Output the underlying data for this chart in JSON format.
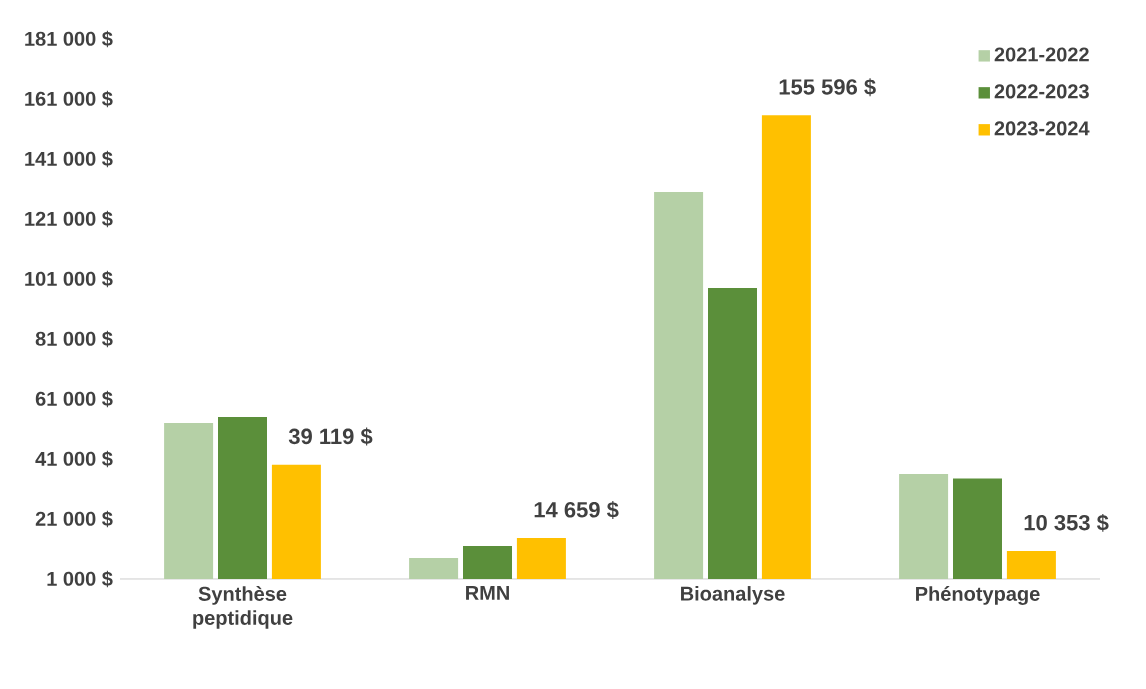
{
  "chart_data": {
    "type": "bar",
    "categories": [
      "Synthèse peptidique",
      "RMN",
      "Bioanalyse",
      "Phénotypage"
    ],
    "series": [
      {
        "name": "2021-2022",
        "color": "#b5d0a6",
        "values": [
          53000,
          8000,
          130000,
          36000
        ]
      },
      {
        "name": "2022-2023",
        "color": "#5b8f3a",
        "values": [
          55000,
          12000,
          98000,
          34500
        ]
      },
      {
        "name": "2023-2024",
        "color": "#ffc000",
        "values": [
          39119,
          14659,
          155596,
          10353
        ],
        "value_labels": [
          "39 119 $",
          "14 659 $",
          "155 596 $",
          "10 353 $"
        ]
      }
    ],
    "ylim": [
      1000,
      181000
    ],
    "yticks": [
      {
        "value": 1000,
        "label": "1 000 $"
      },
      {
        "value": 21000,
        "label": "21 000 $"
      },
      {
        "value": 41000,
        "label": "41 000 $"
      },
      {
        "value": 61000,
        "label": "61 000 $"
      },
      {
        "value": 81000,
        "label": "81 000 $"
      },
      {
        "value": 101000,
        "label": "101 000 $"
      },
      {
        "value": 121000,
        "label": "121 000 $"
      },
      {
        "value": 141000,
        "label": "141 000 $"
      },
      {
        "value": 161000,
        "label": "161 000 $"
      },
      {
        "value": 181000,
        "label": "181 000 $"
      }
    ],
    "grid": false,
    "legend": "top right"
  }
}
